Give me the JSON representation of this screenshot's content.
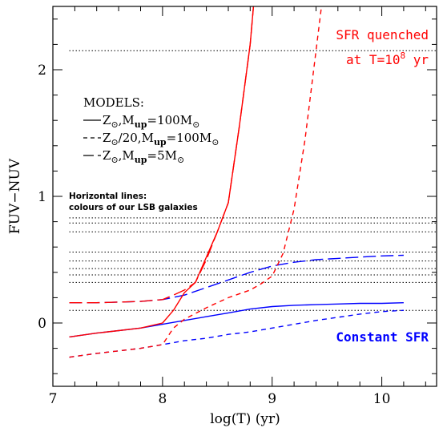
{
  "chart_data": {
    "type": "line",
    "xlabel": "log(T) (yr)",
    "ylabel": "FUV−NUV",
    "xlim": [
      7.0,
      10.5
    ],
    "ylim": [
      -0.5,
      2.5
    ],
    "x_ticks": [
      {
        "value": 7,
        "label": "7"
      },
      {
        "value": 8,
        "label": "8"
      },
      {
        "value": 9,
        "label": "9"
      },
      {
        "value": 10,
        "label": "10"
      }
    ],
    "y_ticks": [
      {
        "value": 0,
        "label": "0"
      },
      {
        "value": 1,
        "label": "1"
      },
      {
        "value": 2,
        "label": "2"
      }
    ],
    "x_minor_step": 0.2,
    "y_minor_step": 0.2,
    "grid": false,
    "horizontal_lines": {
      "label_line1": "Horizontal lines:",
      "label_line2": "colours of our LSB galaxies",
      "x_range": [
        7.15,
        10.5
      ],
      "values": [
        2.15,
        0.83,
        0.79,
        0.72,
        0.56,
        0.49,
        0.43,
        0.38,
        0.32,
        0.1
      ]
    },
    "legend": {
      "title": "MODELS:",
      "entries": [
        {
          "text": "Z⊙,Mup=100M⊙",
          "style": "solid"
        },
        {
          "text": "Z⊙/20,Mup=100M⊙",
          "style": "short-dashed"
        },
        {
          "text": "Z⊙,Mup=5M⊙",
          "style": "long-dashed"
        }
      ]
    },
    "annotations": {
      "quenched_line1": "SFR quenched",
      "quenched_line2_prefix": "at T=10",
      "quenched_line2_exp": "8",
      "quenched_line2_suffix": " yr",
      "constant": "Constant SFR"
    },
    "colors": {
      "quenched": "#ff0000",
      "constant": "#0000ff"
    },
    "series": [
      {
        "color": "#0000ff",
        "style": "solid",
        "x": [
          7.15,
          7.4,
          7.6,
          7.8,
          8.0,
          8.2,
          8.4,
          8.6,
          8.8,
          9.0,
          9.2,
          9.4,
          9.6,
          9.8,
          10.0,
          10.2
        ],
        "y": [
          -0.11,
          -0.08,
          -0.06,
          -0.04,
          -0.01,
          0.02,
          0.05,
          0.08,
          0.11,
          0.13,
          0.14,
          0.145,
          0.15,
          0.155,
          0.155,
          0.16
        ]
      },
      {
        "color": "#0000ff",
        "style": "short-dashed",
        "x": [
          7.15,
          7.4,
          7.6,
          7.8,
          8.0,
          8.2,
          8.4,
          8.6,
          8.8,
          9.0,
          9.2,
          9.4,
          9.6,
          9.8,
          10.0,
          10.2
        ],
        "y": [
          -0.27,
          -0.24,
          -0.22,
          -0.2,
          -0.17,
          -0.14,
          -0.12,
          -0.09,
          -0.07,
          -0.04,
          -0.01,
          0.02,
          0.045,
          0.07,
          0.09,
          0.1
        ]
      },
      {
        "color": "#0000ff",
        "style": "long-dashed",
        "x": [
          7.15,
          7.4,
          7.6,
          7.8,
          8.0,
          8.2,
          8.4,
          8.6,
          8.8,
          9.0,
          9.2,
          9.4,
          9.6,
          9.8,
          10.0,
          10.2
        ],
        "y": [
          0.16,
          0.16,
          0.165,
          0.17,
          0.185,
          0.22,
          0.28,
          0.34,
          0.4,
          0.45,
          0.48,
          0.5,
          0.51,
          0.52,
          0.53,
          0.535
        ]
      },
      {
        "color": "#ff0000",
        "style": "solid",
        "x": [
          7.15,
          7.4,
          7.6,
          7.8,
          8.0,
          8.1,
          8.2,
          8.3,
          8.4,
          8.5,
          8.6,
          8.7,
          8.8,
          8.83
        ],
        "y": [
          -0.11,
          -0.08,
          -0.06,
          -0.04,
          0.0,
          0.1,
          0.24,
          0.32,
          0.52,
          0.72,
          0.95,
          1.55,
          2.2,
          2.5
        ]
      },
      {
        "color": "#ff0000",
        "style": "short-dashed",
        "x": [
          7.15,
          7.4,
          7.6,
          7.8,
          8.0,
          8.1,
          8.2,
          8.4,
          8.6,
          8.8,
          8.9,
          9.0,
          9.1,
          9.2,
          9.3,
          9.4,
          9.45
        ],
        "y": [
          -0.27,
          -0.24,
          -0.22,
          -0.2,
          -0.17,
          -0.04,
          0.03,
          0.12,
          0.2,
          0.26,
          0.31,
          0.37,
          0.55,
          0.9,
          1.45,
          2.15,
          2.5
        ]
      },
      {
        "color": "#ff0000",
        "style": "long-dashed",
        "x": [
          7.15,
          7.4,
          7.6,
          7.8,
          8.0,
          8.1,
          8.2,
          8.3,
          8.4,
          8.5,
          8.6,
          8.7,
          8.8,
          8.83
        ],
        "y": [
          0.16,
          0.16,
          0.165,
          0.17,
          0.185,
          0.22,
          0.26,
          0.32,
          0.5,
          0.72,
          0.95,
          1.55,
          2.2,
          2.5
        ]
      }
    ]
  }
}
